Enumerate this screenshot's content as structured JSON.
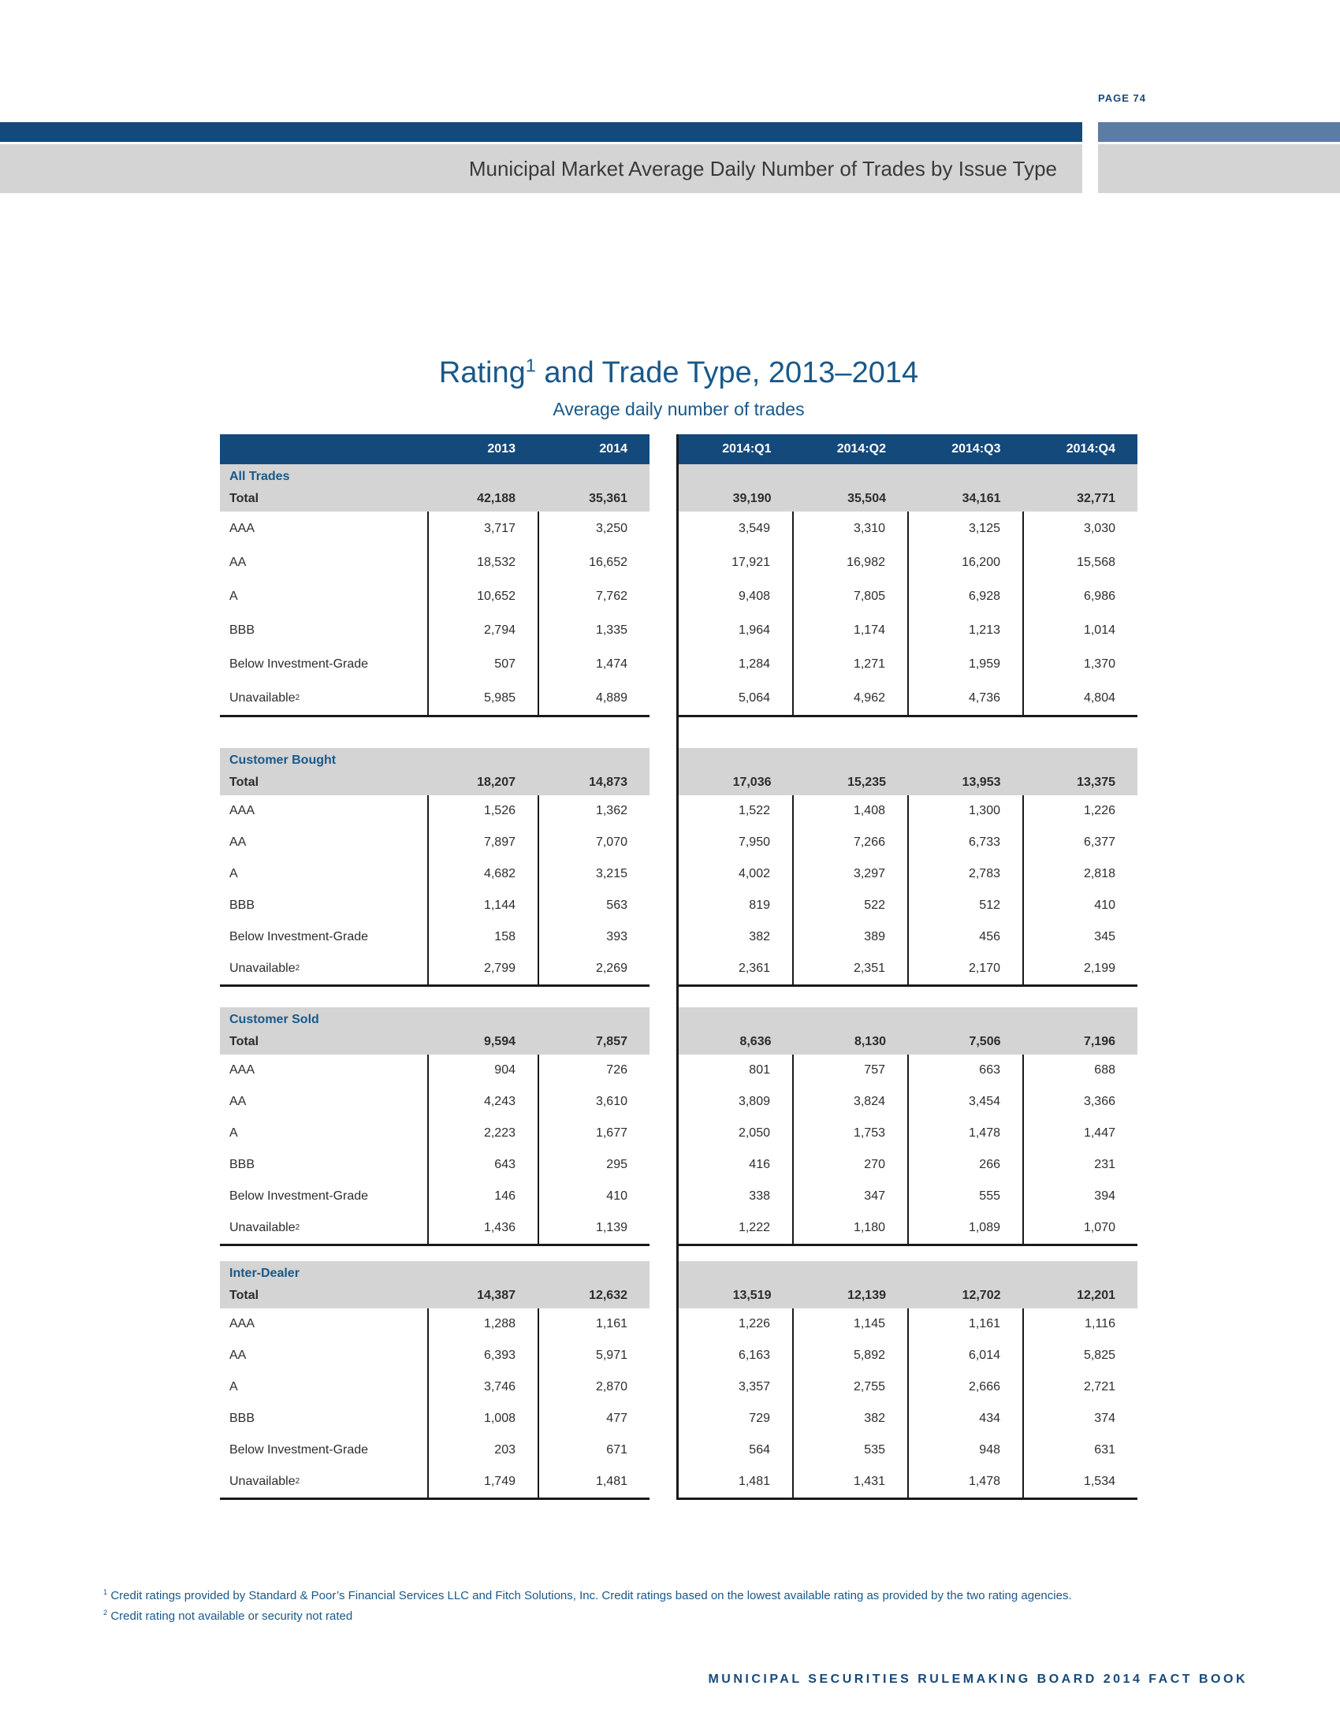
{
  "page": {
    "label": "PAGE 74",
    "banner_title": "Municipal Market Average Daily Number of Trades by Issue Type",
    "footer": "MUNICIPAL SECURITIES RULEMAKING BOARD 2014 FACT BOOK"
  },
  "table": {
    "title_main": "Rating",
    "title_sup": "1",
    "title_rest": " and Trade Type, 2013–2014",
    "subtitle": "Average daily number of trades",
    "annual_columns": [
      "2013",
      "2014"
    ],
    "quarter_columns": [
      "2014:Q1",
      "2014:Q2",
      "2014:Q3",
      "2014:Q4"
    ],
    "total_label": "Total",
    "sections": [
      {
        "name": "All Trades",
        "total": {
          "annual": [
            "42,188",
            "35,361"
          ],
          "quarters": [
            "39,190",
            "35,504",
            "34,161",
            "32,771"
          ]
        },
        "rows": [
          {
            "label": "AAA",
            "sup": "",
            "annual": [
              "3,717",
              "3,250"
            ],
            "quarters": [
              "3,549",
              "3,310",
              "3,125",
              "3,030"
            ]
          },
          {
            "label": "AA",
            "sup": "",
            "annual": [
              "18,532",
              "16,652"
            ],
            "quarters": [
              "17,921",
              "16,982",
              "16,200",
              "15,568"
            ]
          },
          {
            "label": "A",
            "sup": "",
            "annual": [
              "10,652",
              "7,762"
            ],
            "quarters": [
              "9,408",
              "7,805",
              "6,928",
              "6,986"
            ]
          },
          {
            "label": "BBB",
            "sup": "",
            "annual": [
              "2,794",
              "1,335"
            ],
            "quarters": [
              "1,964",
              "1,174",
              "1,213",
              "1,014"
            ]
          },
          {
            "label": "Below Investment-Grade",
            "sup": "",
            "annual": [
              "507",
              "1,474"
            ],
            "quarters": [
              "1,284",
              "1,271",
              "1,959",
              "1,370"
            ]
          },
          {
            "label": "Unavailable",
            "sup": "2",
            "annual": [
              "5,985",
              "4,889"
            ],
            "quarters": [
              "5,064",
              "4,962",
              "4,736",
              "4,804"
            ]
          }
        ]
      },
      {
        "name": "Customer Bought",
        "total": {
          "annual": [
            "18,207",
            "14,873"
          ],
          "quarters": [
            "17,036",
            "15,235",
            "13,953",
            "13,375"
          ]
        },
        "rows": [
          {
            "label": "AAA",
            "sup": "",
            "annual": [
              "1,526",
              "1,362"
            ],
            "quarters": [
              "1,522",
              "1,408",
              "1,300",
              "1,226"
            ]
          },
          {
            "label": "AA",
            "sup": "",
            "annual": [
              "7,897",
              "7,070"
            ],
            "quarters": [
              "7,950",
              "7,266",
              "6,733",
              "6,377"
            ]
          },
          {
            "label": "A",
            "sup": "",
            "annual": [
              "4,682",
              "3,215"
            ],
            "quarters": [
              "4,002",
              "3,297",
              "2,783",
              "2,818"
            ]
          },
          {
            "label": "BBB",
            "sup": "",
            "annual": [
              "1,144",
              "563"
            ],
            "quarters": [
              "819",
              "522",
              "512",
              "410"
            ]
          },
          {
            "label": "Below Investment-Grade",
            "sup": "",
            "annual": [
              "158",
              "393"
            ],
            "quarters": [
              "382",
              "389",
              "456",
              "345"
            ]
          },
          {
            "label": "Unavailable",
            "sup": "2",
            "annual": [
              "2,799",
              "2,269"
            ],
            "quarters": [
              "2,361",
              "2,351",
              "2,170",
              "2,199"
            ]
          }
        ]
      },
      {
        "name": "Customer Sold",
        "total": {
          "annual": [
            "9,594",
            "7,857"
          ],
          "quarters": [
            "8,636",
            "8,130",
            "7,506",
            "7,196"
          ]
        },
        "rows": [
          {
            "label": "AAA",
            "sup": "",
            "annual": [
              "904",
              "726"
            ],
            "quarters": [
              "801",
              "757",
              "663",
              "688"
            ]
          },
          {
            "label": "AA",
            "sup": "",
            "annual": [
              "4,243",
              "3,610"
            ],
            "quarters": [
              "3,809",
              "3,824",
              "3,454",
              "3,366"
            ]
          },
          {
            "label": "A",
            "sup": "",
            "annual": [
              "2,223",
              "1,677"
            ],
            "quarters": [
              "2,050",
              "1,753",
              "1,478",
              "1,447"
            ]
          },
          {
            "label": "BBB",
            "sup": "",
            "annual": [
              "643",
              "295"
            ],
            "quarters": [
              "416",
              "270",
              "266",
              "231"
            ]
          },
          {
            "label": "Below Investment-Grade",
            "sup": "",
            "annual": [
              "146",
              "410"
            ],
            "quarters": [
              "338",
              "347",
              "555",
              "394"
            ]
          },
          {
            "label": "Unavailable",
            "sup": "2",
            "annual": [
              "1,436",
              "1,139"
            ],
            "quarters": [
              "1,222",
              "1,180",
              "1,089",
              "1,070"
            ]
          }
        ]
      },
      {
        "name": "Inter-Dealer",
        "total": {
          "annual": [
            "14,387",
            "12,632"
          ],
          "quarters": [
            "13,519",
            "12,139",
            "12,702",
            "12,201"
          ]
        },
        "rows": [
          {
            "label": "AAA",
            "sup": "",
            "annual": [
              "1,288",
              "1,161"
            ],
            "quarters": [
              "1,226",
              "1,145",
              "1,161",
              "1,116"
            ]
          },
          {
            "label": "AA",
            "sup": "",
            "annual": [
              "6,393",
              "5,971"
            ],
            "quarters": [
              "6,163",
              "5,892",
              "6,014",
              "5,825"
            ]
          },
          {
            "label": "A",
            "sup": "",
            "annual": [
              "3,746",
              "2,870"
            ],
            "quarters": [
              "3,357",
              "2,755",
              "2,666",
              "2,721"
            ]
          },
          {
            "label": "BBB",
            "sup": "",
            "annual": [
              "1,008",
              "477"
            ],
            "quarters": [
              "729",
              "382",
              "434",
              "374"
            ]
          },
          {
            "label": "Below Investment-Grade",
            "sup": "",
            "annual": [
              "203",
              "671"
            ],
            "quarters": [
              "564",
              "535",
              "948",
              "631"
            ]
          },
          {
            "label": "Unavailable",
            "sup": "2",
            "annual": [
              "1,749",
              "1,481"
            ],
            "quarters": [
              "1,481",
              "1,431",
              "1,478",
              "1,534"
            ]
          }
        ]
      }
    ]
  },
  "footnotes": [
    {
      "sup": "1",
      "text": "Credit ratings provided by Standard & Poor’s Financial Services LLC and Fitch Solutions, Inc. Credit ratings based on the lowest available rating as provided by the two rating agencies."
    },
    {
      "sup": "2",
      "text": "Credit rating not available or security not rated"
    }
  ],
  "colors": {
    "navy": "#14497C",
    "navy_text": "#1A5888",
    "slate": "#5B7CA5",
    "band_gray": "#D4D4D4",
    "line": "#1A1A1A"
  }
}
